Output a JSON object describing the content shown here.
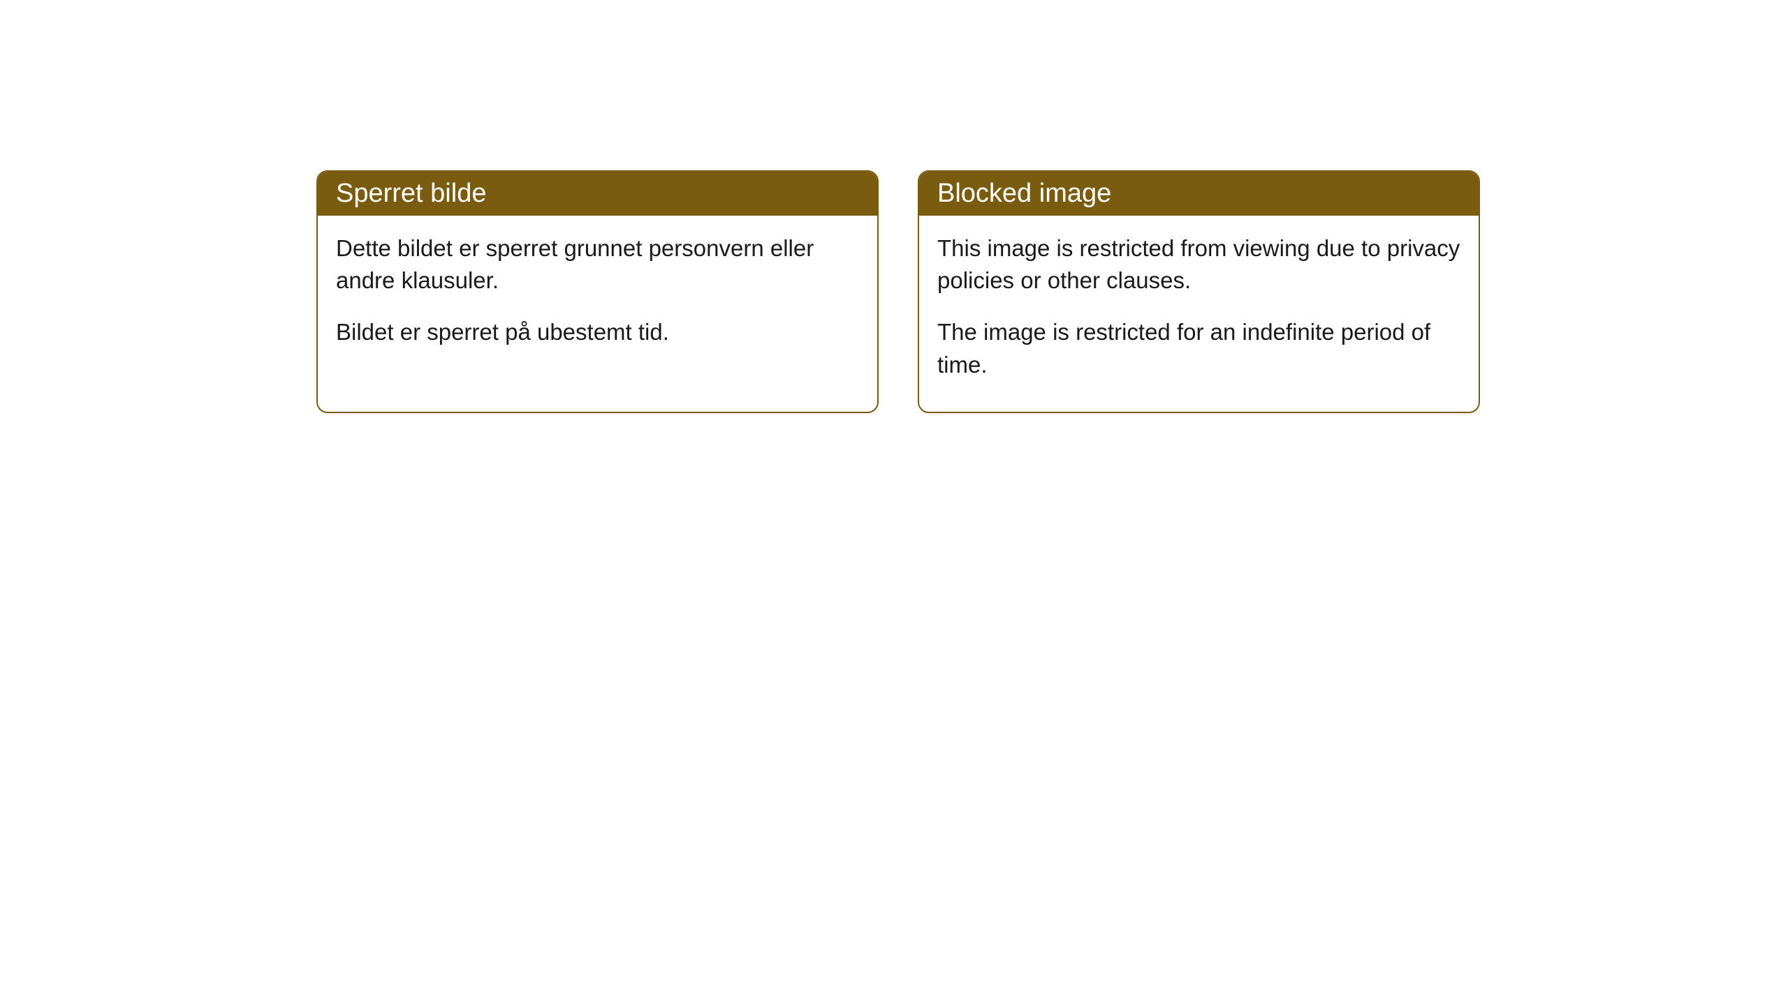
{
  "cards": [
    {
      "title": "Sperret bilde",
      "paragraph1": "Dette bildet er sperret grunnet personvern eller andre klausuler.",
      "paragraph2": "Bildet er sperret på ubestemt tid."
    },
    {
      "title": "Blocked image",
      "paragraph1": "This image is restricted from viewing due to privacy policies or other clauses.",
      "paragraph2": "The image is restricted for an indefinite period of time."
    }
  ],
  "colors": {
    "header_bg": "#7a5c10",
    "header_text": "#ffffff",
    "border": "#7a5c10",
    "body_text": "#1a1a1a",
    "body_bg": "#ffffff"
  }
}
